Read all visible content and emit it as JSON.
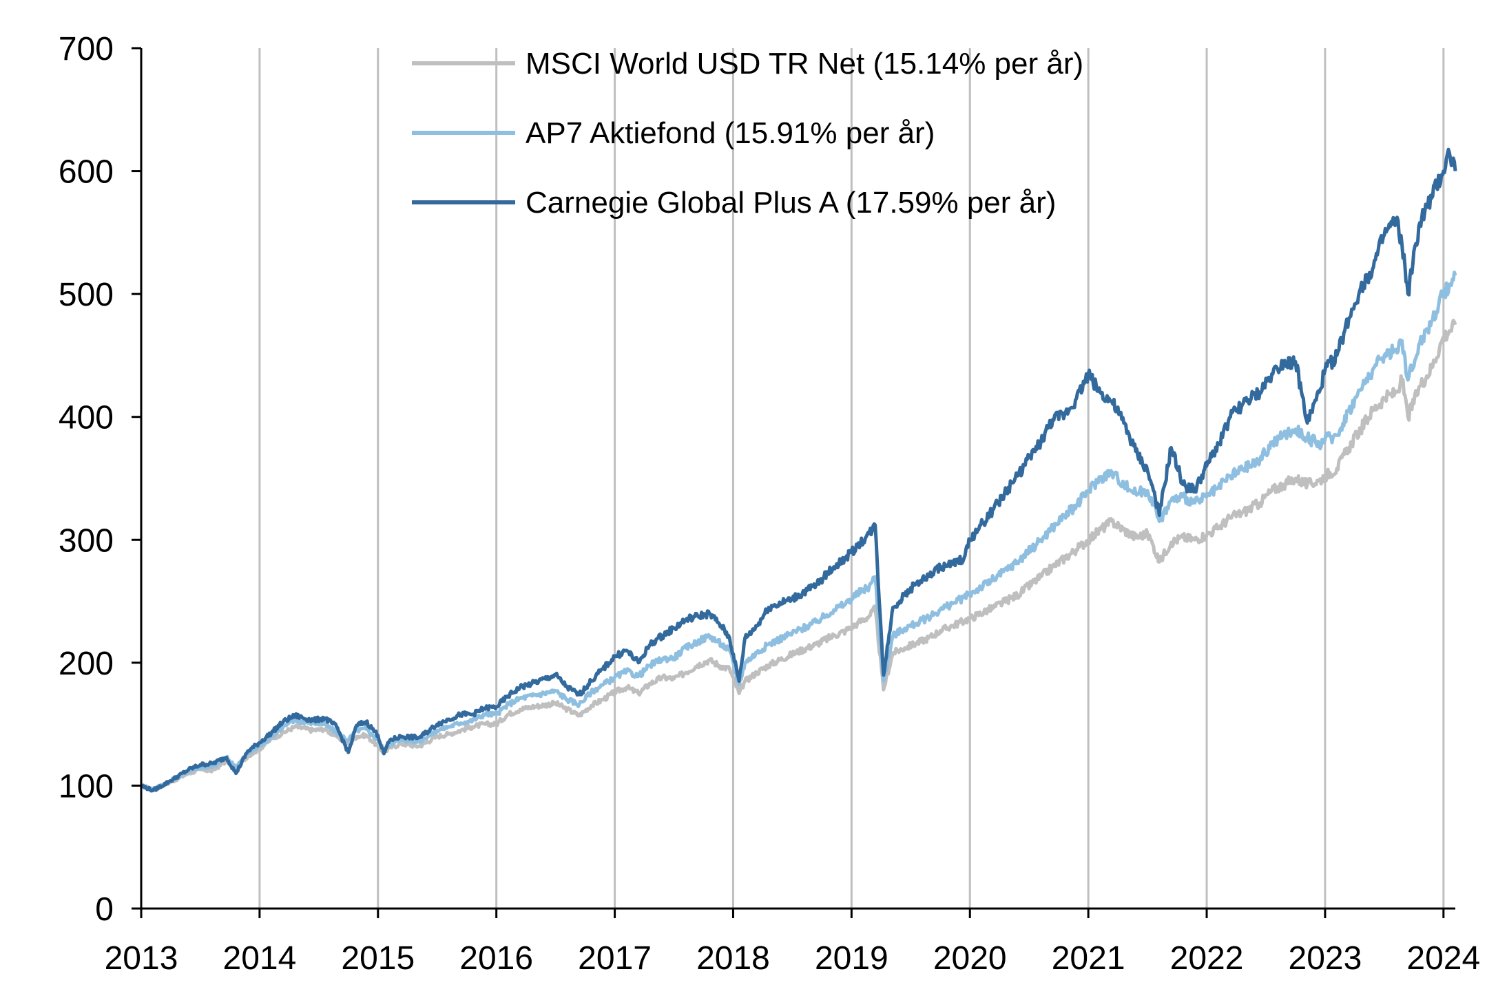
{
  "chart_data": {
    "type": "line",
    "title": "",
    "xlabel": "",
    "ylabel": "",
    "xlim": [
      2013.0,
      2024.1
    ],
    "ylim": [
      0,
      700
    ],
    "grid": "vertical",
    "legend_position": "top-center",
    "y_ticks": [
      "0",
      "100",
      "200",
      "300",
      "400",
      "500",
      "600",
      "700"
    ],
    "x_ticks": [
      "2013",
      "2014",
      "2015",
      "2016",
      "2017",
      "2018",
      "2019",
      "2020",
      "2021",
      "2022",
      "2023",
      "2024"
    ],
    "colors": {
      "grid": "#bfbfbf",
      "axis": "#000000"
    },
    "series": [
      {
        "name": "MSCI World USD TR Net (15.14% per år)",
        "color": "#bfbfbf",
        "x": [
          2013.0,
          2013.1,
          2013.25,
          2013.4,
          2013.5,
          2013.6,
          2013.72,
          2013.8,
          2013.9,
          2014.0,
          2014.1,
          2014.2,
          2014.3,
          2014.45,
          2014.55,
          2014.65,
          2014.75,
          2014.82,
          2014.9,
          2015.0,
          2015.05,
          2015.1,
          2015.2,
          2015.35,
          2015.5,
          2015.6,
          2015.7,
          2015.8,
          2015.9,
          2016.0,
          2016.1,
          2016.2,
          2016.3,
          2016.5,
          2016.6,
          2016.7,
          2016.8,
          2016.9,
          2017.0,
          2017.1,
          2017.2,
          2017.3,
          2017.4,
          2017.5,
          2017.6,
          2017.7,
          2017.8,
          2017.9,
          2017.97,
          2018.05,
          2018.1,
          2018.2,
          2018.3,
          2018.5,
          2018.7,
          2018.85,
          2018.95,
          2019.05,
          2019.15,
          2019.2,
          2019.27,
          2019.35,
          2019.45,
          2019.55,
          2019.65,
          2019.75,
          2019.85,
          2019.95,
          2020.0,
          2020.2,
          2020.4,
          2020.6,
          2020.7,
          2020.8,
          2020.9,
          2021.0,
          2021.1,
          2021.2,
          2021.3,
          2021.4,
          2021.5,
          2021.55,
          2021.6,
          2021.7,
          2021.8,
          2021.9,
          2022.0,
          2022.1,
          2022.2,
          2022.3,
          2022.45,
          2022.55,
          2022.65,
          2022.75,
          2022.85,
          2022.95,
          2023.0,
          2023.1,
          2023.2,
          2023.3,
          2023.4,
          2023.5,
          2023.6,
          2023.65,
          2023.7,
          2023.8,
          2023.9,
          2024.0,
          2024.05,
          2024.1
        ],
        "values": [
          100,
          97,
          103,
          110,
          113,
          112,
          120,
          115,
          124,
          130,
          138,
          143,
          148,
          145,
          146,
          140,
          134,
          140,
          141,
          132,
          127,
          131,
          134,
          132,
          140,
          142,
          145,
          148,
          150,
          150,
          158,
          162,
          164,
          167,
          162,
          157,
          165,
          170,
          176,
          180,
          175,
          183,
          188,
          187,
          192,
          198,
          202,
          197,
          195,
          175,
          185,
          192,
          198,
          207,
          215,
          222,
          226,
          232,
          238,
          244,
          178,
          208,
          212,
          216,
          220,
          226,
          230,
          234,
          236,
          245,
          255,
          270,
          278,
          285,
          292,
          300,
          308,
          315,
          308,
          302,
          305,
          295,
          282,
          298,
          302,
          300,
          304,
          310,
          318,
          322,
          330,
          340,
          345,
          350,
          345,
          348,
          352,
          358,
          375,
          390,
          405,
          415,
          420,
          430,
          400,
          425,
          440,
          465,
          470,
          475
        ]
      },
      {
        "name": "AP7 Aktiefond (15.91% per år)",
        "color": "#8fbfe0",
        "x": [
          2013.0,
          2013.1,
          2013.25,
          2013.4,
          2013.5,
          2013.6,
          2013.72,
          2013.8,
          2013.9,
          2014.0,
          2014.1,
          2014.2,
          2014.3,
          2014.45,
          2014.55,
          2014.65,
          2014.75,
          2014.82,
          2014.9,
          2015.0,
          2015.05,
          2015.1,
          2015.2,
          2015.35,
          2015.5,
          2015.6,
          2015.7,
          2015.8,
          2015.9,
          2016.0,
          2016.1,
          2016.2,
          2016.3,
          2016.5,
          2016.6,
          2016.7,
          2016.8,
          2016.9,
          2017.0,
          2017.1,
          2017.2,
          2017.3,
          2017.4,
          2017.5,
          2017.6,
          2017.7,
          2017.8,
          2017.9,
          2017.97,
          2018.05,
          2018.1,
          2018.2,
          2018.3,
          2018.5,
          2018.7,
          2018.85,
          2018.95,
          2019.05,
          2019.15,
          2019.2,
          2019.27,
          2019.35,
          2019.45,
          2019.55,
          2019.65,
          2019.75,
          2019.85,
          2019.95,
          2020.0,
          2020.2,
          2020.4,
          2020.6,
          2020.7,
          2020.8,
          2020.9,
          2021.0,
          2021.1,
          2021.2,
          2021.3,
          2021.4,
          2021.5,
          2021.55,
          2021.6,
          2021.7,
          2021.8,
          2021.9,
          2022.0,
          2022.1,
          2022.2,
          2022.3,
          2022.45,
          2022.55,
          2022.65,
          2022.75,
          2022.85,
          2022.95,
          2023.0,
          2023.1,
          2023.2,
          2023.3,
          2023.4,
          2023.5,
          2023.6,
          2023.65,
          2023.7,
          2023.8,
          2023.9,
          2024.0,
          2024.05,
          2024.1
        ],
        "values": [
          100,
          97,
          104,
          112,
          115,
          115,
          123,
          115,
          126,
          132,
          140,
          148,
          153,
          151,
          150,
          143,
          137,
          145,
          146,
          137,
          129,
          134,
          137,
          136,
          145,
          148,
          151,
          153,
          158,
          158,
          166,
          171,
          173,
          177,
          170,
          166,
          176,
          182,
          188,
          193,
          189,
          198,
          203,
          204,
          212,
          217,
          222,
          215,
          210,
          182,
          200,
          208,
          215,
          224,
          233,
          243,
          248,
          256,
          262,
          270,
          185,
          222,
          228,
          232,
          237,
          243,
          248,
          253,
          256,
          268,
          282,
          300,
          310,
          320,
          328,
          340,
          350,
          355,
          345,
          338,
          340,
          330,
          315,
          332,
          335,
          330,
          335,
          342,
          352,
          357,
          365,
          378,
          385,
          390,
          383,
          378,
          382,
          385,
          405,
          422,
          438,
          450,
          455,
          462,
          430,
          460,
          478,
          500,
          508,
          515
        ]
      },
      {
        "name": "Carnegie Global Plus A (17.59% per år)",
        "color": "#336a9e",
        "x": [
          2013.0,
          2013.1,
          2013.25,
          2013.4,
          2013.5,
          2013.6,
          2013.72,
          2013.8,
          2013.9,
          2014.0,
          2014.1,
          2014.2,
          2014.3,
          2014.45,
          2014.55,
          2014.65,
          2014.75,
          2014.82,
          2014.9,
          2015.0,
          2015.05,
          2015.1,
          2015.2,
          2015.35,
          2015.5,
          2015.6,
          2015.7,
          2015.8,
          2015.9,
          2016.0,
          2016.1,
          2016.2,
          2016.3,
          2016.5,
          2016.6,
          2016.7,
          2016.8,
          2016.9,
          2017.0,
          2017.1,
          2017.2,
          2017.3,
          2017.4,
          2017.5,
          2017.6,
          2017.7,
          2017.8,
          2017.9,
          2017.97,
          2018.05,
          2018.1,
          2018.2,
          2018.3,
          2018.5,
          2018.7,
          2018.85,
          2018.95,
          2019.05,
          2019.15,
          2019.2,
          2019.27,
          2019.35,
          2019.45,
          2019.55,
          2019.65,
          2019.75,
          2019.85,
          2019.95,
          2020.0,
          2020.2,
          2020.4,
          2020.6,
          2020.7,
          2020.8,
          2020.9,
          2021.0,
          2021.1,
          2021.2,
          2021.3,
          2021.4,
          2021.5,
          2021.55,
          2021.6,
          2021.7,
          2021.8,
          2021.9,
          2022.0,
          2022.1,
          2022.2,
          2022.3,
          2022.45,
          2022.55,
          2022.65,
          2022.75,
          2022.85,
          2022.95,
          2023.0,
          2023.1,
          2023.2,
          2023.3,
          2023.4,
          2023.5,
          2023.6,
          2023.65,
          2023.7,
          2023.8,
          2023.9,
          2024.0,
          2024.05,
          2024.1
        ],
        "values": [
          100,
          96,
          104,
          113,
          117,
          118,
          123,
          110,
          128,
          135,
          143,
          152,
          157,
          153,
          155,
          148,
          127,
          149,
          152,
          141,
          126,
          137,
          140,
          139,
          150,
          154,
          158,
          158,
          163,
          164,
          173,
          180,
          183,
          190,
          180,
          174,
          185,
          195,
          205,
          210,
          200,
          215,
          222,
          228,
          235,
          238,
          240,
          230,
          220,
          185,
          220,
          230,
          245,
          252,
          263,
          278,
          285,
          295,
          305,
          312,
          190,
          245,
          255,
          265,
          270,
          278,
          280,
          285,
          300,
          325,
          352,
          380,
          398,
          402,
          415,
          435,
          420,
          412,
          395,
          372,
          356,
          340,
          320,
          375,
          345,
          340,
          360,
          378,
          400,
          410,
          420,
          435,
          445,
          445,
          395,
          420,
          438,
          450,
          480,
          505,
          520,
          548,
          560,
          540,
          500,
          558,
          578,
          600,
          615,
          600
        ]
      }
    ]
  }
}
